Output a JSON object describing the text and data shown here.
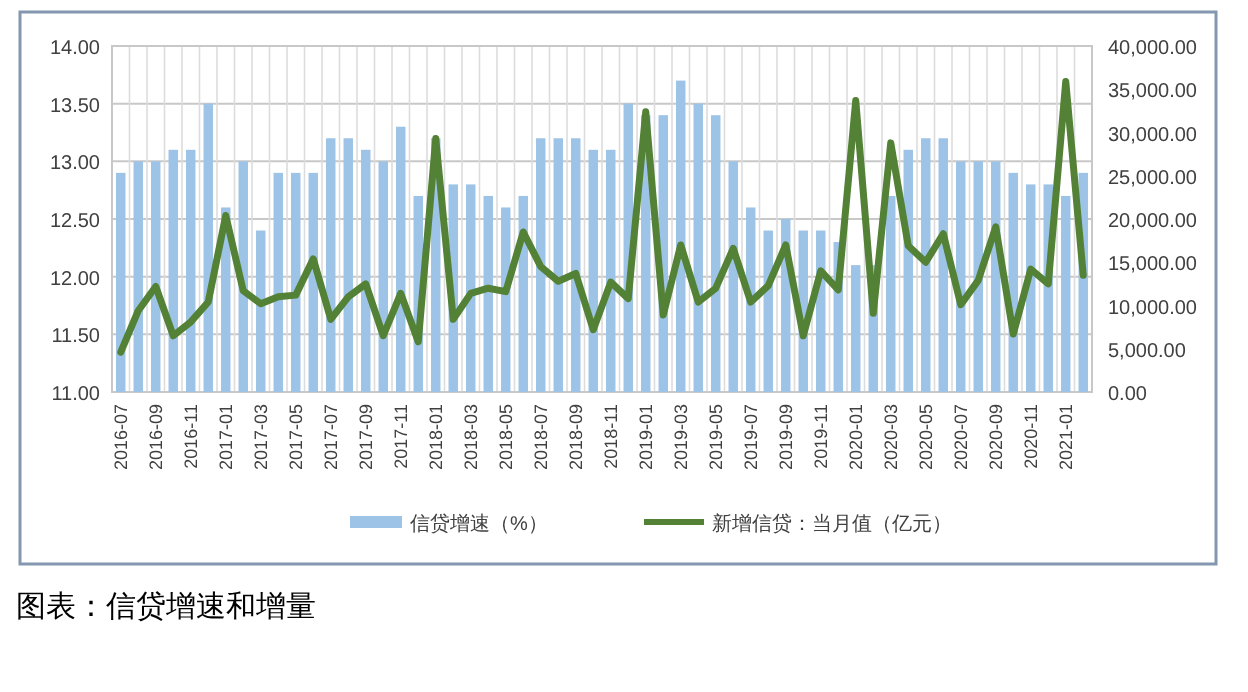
{
  "chart_data": {
    "type": "bar",
    "title": "图表：信贷增速和增量",
    "categories": [
      "2016-07",
      null,
      "2016-09",
      null,
      "2016-11",
      null,
      "2017-01",
      null,
      "2017-03",
      null,
      "2017-05",
      null,
      "2017-07",
      null,
      "2017-09",
      null,
      "2017-11",
      null,
      "2018-01",
      null,
      "2018-03",
      null,
      "2018-05",
      null,
      "2018-07",
      null,
      "2018-09",
      null,
      "2018-11",
      null,
      "2019-01",
      null,
      "2019-03",
      null,
      "2019-05",
      null,
      "2019-07",
      null,
      "2019-09",
      null,
      "2019-11",
      null,
      "2020-01",
      null,
      "2020-03",
      null,
      "2020-05",
      null,
      "2020-07",
      null,
      "2020-09",
      null,
      "2020-11",
      null,
      "2021-01",
      null
    ],
    "series": [
      {
        "name": "信贷增速（%）",
        "color": "#9dc3e6",
        "values": [
          12.9,
          13.0,
          13.0,
          13.1,
          13.1,
          13.5,
          12.6,
          13.0,
          12.4,
          12.9,
          12.9,
          12.9,
          13.2,
          13.2,
          13.1,
          13.0,
          13.3,
          12.7,
          13.2,
          12.8,
          12.8,
          12.7,
          12.6,
          12.7,
          13.2,
          13.2,
          13.2,
          13.1,
          13.1,
          13.5,
          13.4,
          13.4,
          13.7,
          13.5,
          13.4,
          13.0,
          12.6,
          12.4,
          12.5,
          12.4,
          12.4,
          12.3,
          12.1,
          12.1,
          12.7,
          13.1,
          13.2,
          13.2,
          13.0,
          13.0,
          13.0,
          12.9,
          12.8,
          12.8,
          12.7,
          12.9
        ]
      },
      {
        "name": "新增信贷：当月值（亿元）",
        "type": "line",
        "axis": "y2",
        "color": "#538135",
        "values": [
          4600,
          9400,
          12200,
          6500,
          8100,
          10400,
          20400,
          11700,
          10200,
          11000,
          11200,
          15400,
          8400,
          11000,
          12500,
          6500,
          11400,
          5800,
          29300,
          8400,
          11400,
          12000,
          11600,
          18500,
          14500,
          12800,
          13700,
          7200,
          12700,
          10800,
          32400,
          8900,
          17000,
          10400,
          12000,
          16600,
          10400,
          12300,
          17000,
          6500,
          14000,
          11800,
          33700,
          9100,
          28800,
          16900,
          15000,
          18300,
          10100,
          12900,
          19100,
          6700,
          14200,
          12500,
          35900,
          13500
        ]
      }
    ],
    "ylim": [
      11,
      14
    ],
    "yticks": [
      {
        "value": 11,
        "label": "11.00"
      },
      {
        "value": 11.5,
        "label": "11.50"
      },
      {
        "value": 12,
        "label": "12.00"
      },
      {
        "value": 12.5,
        "label": "12.50"
      },
      {
        "value": 13,
        "label": "13.00"
      },
      {
        "value": 13.5,
        "label": "13.50"
      },
      {
        "value": 14,
        "label": "14.00"
      }
    ],
    "y2lim": [
      0,
      40000
    ],
    "y2ticks": [
      {
        "value": 0,
        "label": "0.00"
      },
      {
        "value": 5000,
        "label": "5,000.00"
      },
      {
        "value": 10000,
        "label": "10,000.00"
      },
      {
        "value": 15000,
        "label": "15,000.00"
      },
      {
        "value": 20000,
        "label": "20,000.00"
      },
      {
        "value": 25000,
        "label": "25,000.00"
      },
      {
        "value": 30000,
        "label": "30,000.00"
      },
      {
        "value": 35000,
        "label": "35,000.00"
      },
      {
        "value": 40000,
        "label": "40,000.00"
      }
    ],
    "grid": true,
    "legend": "bottom",
    "line_style": "solid",
    "marker": "none"
  }
}
